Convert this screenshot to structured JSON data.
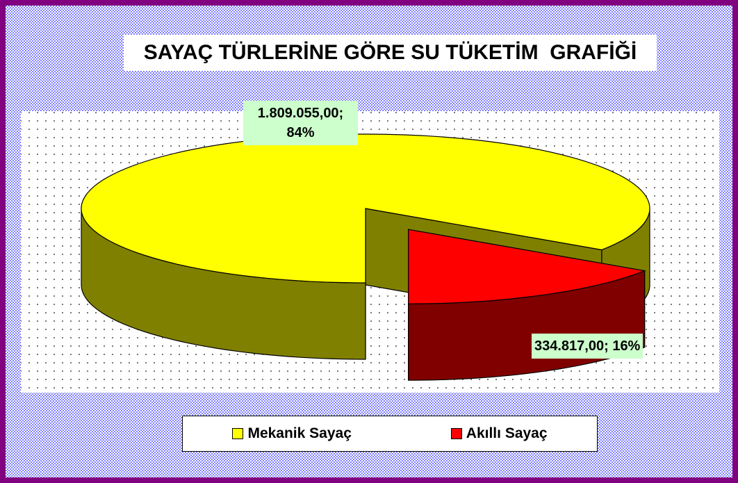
{
  "chart_data": {
    "type": "pie",
    "title": "SAYAÇ TÜRLERİNE GÖRE SU TÜKETİM  GRAFİĞİ",
    "categories": [
      "Mekanik Sayaç",
      "Akıllı Sayaç"
    ],
    "values": [
      1809055,
      334817
    ],
    "value_labels": [
      "1.809.055,00; 84%",
      "334.817,00; 16%"
    ],
    "colors": [
      "#ffff00",
      "#ff0000"
    ],
    "legend": "bottom"
  }
}
